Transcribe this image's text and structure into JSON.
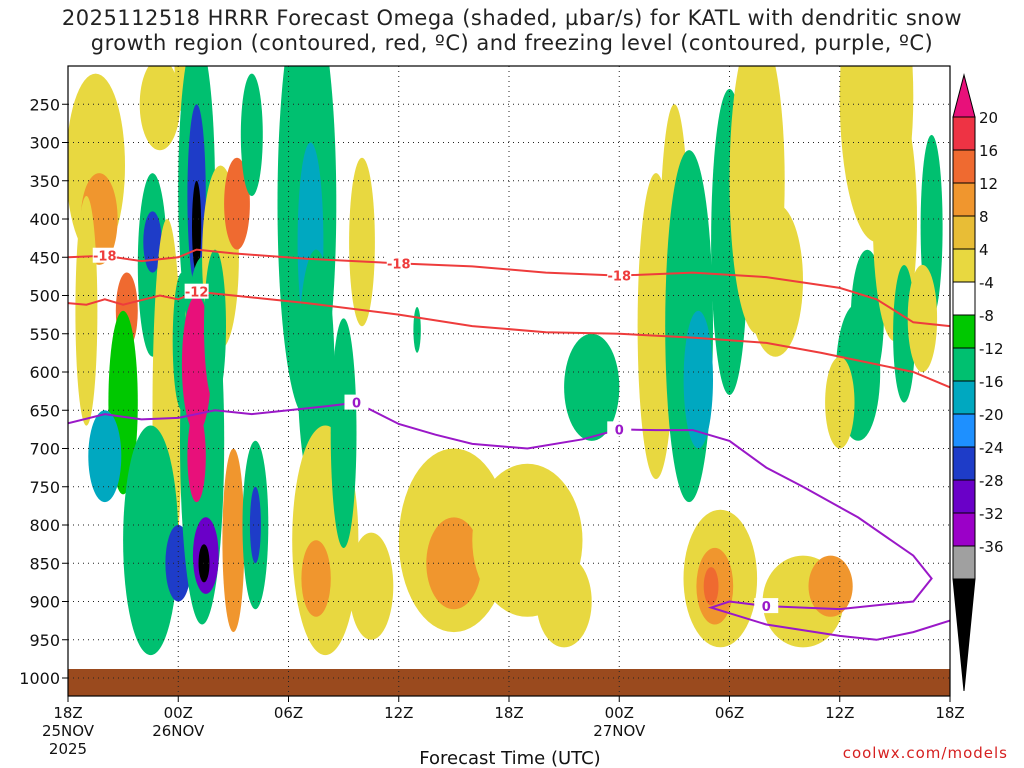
{
  "title_line1": "2025112518 HRRR Forecast Omega (shaded, µbar/s) for KATL with dendritic snow",
  "title_line2": "growth region (contoured, red, ºC) and freezing level (contoured, purple, ºC)",
  "credit": "coolwx.com/models",
  "chart_data": {
    "type": "heatmap",
    "title": "2025112518 HRRR Forecast Omega (shaded, µbar/s) for KATL with dendritic snow growth region (contoured, red, ºC) and freezing level (contoured, purple, ºC)",
    "xlabel": "Forecast Time (UTC)",
    "ylabel": "",
    "x_range_hours": [
      0,
      48
    ],
    "y_range_hpa": [
      200,
      1000
    ],
    "x_ticks": [
      {
        "hour": 0,
        "label": "18Z",
        "sub": "25NOV",
        "sub2": "2025"
      },
      {
        "hour": 6,
        "label": "00Z",
        "sub": "26NOV",
        "sub2": ""
      },
      {
        "hour": 12,
        "label": "06Z",
        "sub": "",
        "sub2": ""
      },
      {
        "hour": 18,
        "label": "12Z",
        "sub": "",
        "sub2": ""
      },
      {
        "hour": 24,
        "label": "18Z",
        "sub": "",
        "sub2": ""
      },
      {
        "hour": 30,
        "label": "00Z",
        "sub": "27NOV",
        "sub2": ""
      },
      {
        "hour": 36,
        "label": "06Z",
        "sub": "",
        "sub2": ""
      },
      {
        "hour": 42,
        "label": "12Z",
        "sub": "",
        "sub2": ""
      },
      {
        "hour": 48,
        "label": "18Z",
        "sub": "",
        "sub2": ""
      }
    ],
    "y_ticks": [
      250,
      300,
      350,
      400,
      450,
      500,
      550,
      600,
      650,
      700,
      750,
      800,
      850,
      900,
      950,
      1000
    ],
    "colorbar": {
      "labels": [
        20,
        16,
        12,
        8,
        4,
        -4,
        -8,
        -12,
        -16,
        -20,
        -24,
        -28,
        -32,
        -36
      ],
      "colors": [
        "#ee3344",
        "#ef6a30",
        "#f0962e",
        "#e8bd36",
        "#e8d840",
        "#ffffff",
        "#00c800",
        "#00c070",
        "#00a8c0",
        "#1e90ff",
        "#1e3cc8",
        "#6a00c8",
        "#9b00c8",
        "#a0a0a0"
      ],
      "top_color": "#e8107a",
      "bottom_color": "#000000"
    },
    "dgz_contours": [
      {
        "level": -18,
        "label": "-18",
        "points": [
          [
            0,
            450
          ],
          [
            2,
            448
          ],
          [
            4,
            455
          ],
          [
            6,
            450
          ],
          [
            7,
            440
          ],
          [
            9,
            445
          ],
          [
            13,
            452
          ],
          [
            18,
            458
          ],
          [
            22,
            462
          ],
          [
            26,
            470
          ],
          [
            30,
            474
          ],
          [
            34,
            470
          ],
          [
            38,
            476
          ],
          [
            42,
            490
          ],
          [
            44,
            505
          ],
          [
            46,
            535
          ],
          [
            48,
            540
          ]
        ]
      },
      {
        "level": -12,
        "label": "-12",
        "points": [
          [
            0,
            510
          ],
          [
            1,
            512
          ],
          [
            2,
            505
          ],
          [
            3,
            512
          ],
          [
            5,
            500
          ],
          [
            6,
            505
          ],
          [
            7,
            495
          ],
          [
            9,
            500
          ],
          [
            13,
            510
          ],
          [
            18,
            525
          ],
          [
            22,
            540
          ],
          [
            26,
            548
          ],
          [
            30,
            550
          ],
          [
            34,
            555
          ],
          [
            38,
            562
          ],
          [
            41,
            575
          ],
          [
            43,
            585
          ],
          [
            46,
            600
          ],
          [
            48,
            620
          ]
        ]
      }
    ],
    "freezing_contours": [
      {
        "level": 0,
        "label": "0",
        "points": [
          [
            0,
            667
          ],
          [
            2,
            655
          ],
          [
            4,
            662
          ],
          [
            6,
            660
          ],
          [
            8,
            650
          ],
          [
            10,
            655
          ],
          [
            12,
            650
          ],
          [
            14,
            645
          ],
          [
            15.7,
            640
          ],
          [
            18,
            668
          ],
          [
            20,
            682
          ],
          [
            22,
            694
          ],
          [
            25,
            700
          ],
          [
            28,
            688
          ],
          [
            30,
            675
          ],
          [
            32,
            676
          ],
          [
            34,
            676
          ],
          [
            36,
            690
          ],
          [
            38,
            725
          ],
          [
            40,
            750
          ],
          [
            43,
            790
          ],
          [
            46,
            840
          ],
          [
            47,
            870
          ],
          [
            46,
            900
          ],
          [
            42,
            910
          ],
          [
            38,
            906
          ],
          [
            36,
            900
          ],
          [
            35,
            908
          ],
          [
            38,
            930
          ],
          [
            42,
            945
          ],
          [
            44,
            950
          ],
          [
            46,
            940
          ],
          [
            48,
            925
          ]
        ]
      }
    ],
    "omega_cells": [
      {
        "t": 1.5,
        "p": 330,
        "rt": 1.6,
        "rp": 120,
        "v": 6
      },
      {
        "t": 1.7,
        "p": 400,
        "rt": 1.0,
        "rp": 60,
        "v": 9
      },
      {
        "t": 1.0,
        "p": 520,
        "rt": 0.6,
        "rp": 150,
        "v": 5
      },
      {
        "t": 3.2,
        "p": 520,
        "rt": 0.6,
        "rp": 50,
        "v": 13
      },
      {
        "t": 3.0,
        "p": 640,
        "rt": 0.8,
        "rp": 120,
        "v": -6
      },
      {
        "t": 2.0,
        "p": 710,
        "rt": 0.9,
        "rp": 60,
        "v": -14
      },
      {
        "t": 5.0,
        "p": 250,
        "rt": 1.1,
        "rp": 60,
        "v": 5
      },
      {
        "t": 4.6,
        "p": 460,
        "rt": 0.8,
        "rp": 120,
        "v": -8
      },
      {
        "t": 4.6,
        "p": 430,
        "rt": 0.5,
        "rp": 40,
        "v": -22
      },
      {
        "t": 5.4,
        "p": 650,
        "rt": 0.8,
        "rp": 250,
        "v": 5
      },
      {
        "t": 4.5,
        "p": 820,
        "rt": 1.5,
        "rp": 150,
        "v": -8
      },
      {
        "t": 6.2,
        "p": 560,
        "rt": 0.5,
        "rp": 90,
        "v": -10
      },
      {
        "t": 6.0,
        "p": 850,
        "rt": 0.7,
        "rp": 50,
        "v": -20
      },
      {
        "t": 6.2,
        "p": 200,
        "rt": 0.4,
        "rp": 60,
        "v": 6
      },
      {
        "t": 7.0,
        "p": 520,
        "rt": 0.6,
        "rp": 60,
        "v": 4
      },
      {
        "t": 7.0,
        "p": 360,
        "rt": 1.0,
        "rp": 200,
        "v": -8
      },
      {
        "t": 7.0,
        "p": 370,
        "rt": 0.5,
        "rp": 120,
        "v": -22
      },
      {
        "t": 7.0,
        "p": 410,
        "rt": 0.25,
        "rp": 60,
        "v": -40
      },
      {
        "t": 7.3,
        "p": 690,
        "rt": 1.2,
        "rp": 240,
        "v": -8
      },
      {
        "t": 7.0,
        "p": 590,
        "rt": 0.8,
        "rp": 90,
        "v": 30
      },
      {
        "t": 7.0,
        "p": 710,
        "rt": 0.5,
        "rp": 60,
        "v": 30
      },
      {
        "t": 7.5,
        "p": 840,
        "rt": 0.7,
        "rp": 50,
        "v": -24
      },
      {
        "t": 7.4,
        "p": 850,
        "rt": 0.3,
        "rp": 25,
        "v": -40
      },
      {
        "t": 8.3,
        "p": 450,
        "rt": 1.0,
        "rp": 120,
        "v": 6
      },
      {
        "t": 8.0,
        "p": 540,
        "rt": 0.6,
        "rp": 100,
        "v": -8
      },
      {
        "t": 9.2,
        "p": 380,
        "rt": 0.7,
        "rp": 60,
        "v": 12
      },
      {
        "t": 9.0,
        "p": 820,
        "rt": 0.6,
        "rp": 120,
        "v": 10
      },
      {
        "t": 10.0,
        "p": 290,
        "rt": 0.6,
        "rp": 80,
        "v": -8
      },
      {
        "t": 10.2,
        "p": 800,
        "rt": 0.7,
        "rp": 110,
        "v": -8
      },
      {
        "t": 10.2,
        "p": 800,
        "rt": 0.3,
        "rp": 50,
        "v": -22
      },
      {
        "t": 13.0,
        "p": 380,
        "rt": 1.6,
        "rp": 280,
        "v": -8
      },
      {
        "t": 13.2,
        "p": 430,
        "rt": 0.7,
        "rp": 130,
        "v": -14
      },
      {
        "t": 13.5,
        "p": 600,
        "rt": 1.0,
        "rp": 160,
        "v": -8
      },
      {
        "t": 14.0,
        "p": 820,
        "rt": 1.8,
        "rp": 150,
        "v": 5
      },
      {
        "t": 13.5,
        "p": 870,
        "rt": 0.8,
        "rp": 50,
        "v": 9
      },
      {
        "t": 16.0,
        "p": 430,
        "rt": 0.7,
        "rp": 110,
        "v": 5
      },
      {
        "t": 15.0,
        "p": 680,
        "rt": 0.7,
        "rp": 150,
        "v": -8
      },
      {
        "t": 16.5,
        "p": 880,
        "rt": 1.2,
        "rp": 70,
        "v": 5
      },
      {
        "t": 19.0,
        "p": 545,
        "rt": 0.2,
        "rp": 30,
        "v": -8
      },
      {
        "t": 21.0,
        "p": 820,
        "rt": 3.0,
        "rp": 120,
        "v": 5
      },
      {
        "t": 21.0,
        "p": 850,
        "rt": 1.5,
        "rp": 60,
        "v": 9
      },
      {
        "t": 25.0,
        "p": 820,
        "rt": 3.0,
        "rp": 100,
        "v": 5
      },
      {
        "t": 28.5,
        "p": 620,
        "rt": 1.5,
        "rp": 70,
        "v": -8
      },
      {
        "t": 27.0,
        "p": 900,
        "rt": 1.5,
        "rp": 60,
        "v": 5
      },
      {
        "t": 32.0,
        "p": 540,
        "rt": 1.0,
        "rp": 200,
        "v": 5
      },
      {
        "t": 33.0,
        "p": 450,
        "rt": 0.8,
        "rp": 200,
        "v": 5
      },
      {
        "t": 33.8,
        "p": 540,
        "rt": 1.3,
        "rp": 230,
        "v": -8
      },
      {
        "t": 34.3,
        "p": 610,
        "rt": 0.8,
        "rp": 90,
        "v": -14
      },
      {
        "t": 36.0,
        "p": 430,
        "rt": 1.0,
        "rp": 200,
        "v": -8
      },
      {
        "t": 35.5,
        "p": 870,
        "rt": 2.0,
        "rp": 90,
        "v": 5
      },
      {
        "t": 35.2,
        "p": 880,
        "rt": 1.0,
        "rp": 50,
        "v": 10
      },
      {
        "t": 35.0,
        "p": 880,
        "rt": 0.4,
        "rp": 25,
        "v": 15
      },
      {
        "t": 37.5,
        "p": 350,
        "rt": 1.5,
        "rp": 200,
        "v": 5
      },
      {
        "t": 38.5,
        "p": 480,
        "rt": 1.5,
        "rp": 100,
        "v": 5
      },
      {
        "t": 40.0,
        "p": 900,
        "rt": 2.2,
        "rp": 60,
        "v": 5
      },
      {
        "t": 41.5,
        "p": 880,
        "rt": 1.2,
        "rp": 40,
        "v": 9
      },
      {
        "t": 43.5,
        "p": 530,
        "rt": 0.9,
        "rp": 90,
        "v": -8
      },
      {
        "t": 43.0,
        "p": 600,
        "rt": 1.2,
        "rp": 90,
        "v": -8
      },
      {
        "t": 42.0,
        "p": 640,
        "rt": 0.8,
        "rp": 60,
        "v": 5
      },
      {
        "t": 44.0,
        "p": 240,
        "rt": 2.0,
        "rp": 190,
        "v": 5
      },
      {
        "t": 45.0,
        "p": 400,
        "rt": 1.2,
        "rp": 160,
        "v": 5
      },
      {
        "t": 45.5,
        "p": 550,
        "rt": 0.6,
        "rp": 90,
        "v": -8
      },
      {
        "t": 47.0,
        "p": 410,
        "rt": 0.6,
        "rp": 120,
        "v": -8
      },
      {
        "t": 46.5,
        "p": 530,
        "rt": 0.8,
        "rp": 70,
        "v": 5
      }
    ]
  }
}
